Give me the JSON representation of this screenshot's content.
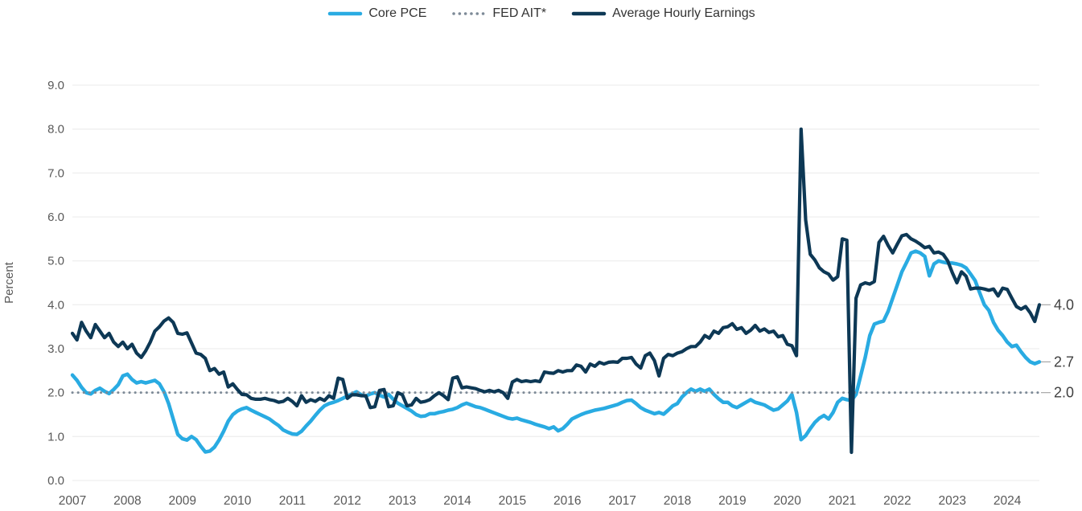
{
  "legend": [
    {
      "label": "Core PCE",
      "color": "#29ABE2",
      "style": "solid"
    },
    {
      "label": "FED AIT*",
      "color": "#7D8A97",
      "style": "dotted"
    },
    {
      "label": "Average Hourly Earnings",
      "color": "#0D3855",
      "style": "solid"
    }
  ],
  "y_axis": {
    "title": "Percent",
    "ticks": [
      "9.0",
      "8.0",
      "7.0",
      "6.0",
      "5.0",
      "4.0",
      "3.0",
      "2.0",
      "1.0",
      "0.0"
    ]
  },
  "x_axis": {
    "ticks": [
      "2007",
      "2008",
      "2009",
      "2010",
      "2011",
      "2012",
      "2013",
      "2014",
      "2015",
      "2016",
      "2017",
      "2018",
      "2019",
      "2020",
      "2021",
      "2022",
      "2023",
      "2024"
    ]
  },
  "end_labels": [
    {
      "text": "4.0",
      "value": 4.0,
      "series": "Average Hourly Earnings"
    },
    {
      "text": "2.7",
      "value": 2.7,
      "series": "Core PCE"
    },
    {
      "text": "2.0",
      "value": 2.0,
      "series": "FED AIT*"
    }
  ],
  "colors": {
    "core_pce": "#29ABE2",
    "ahe": "#0D3855",
    "fed_ait": "#7D8A97",
    "grid": "#EFEFEF",
    "axis_text": "#595959",
    "end_label": "#404040",
    "legend_text": "#333333",
    "connector": "#A6A6A6",
    "background": "#FFFFFF"
  },
  "chart_data": {
    "type": "line",
    "title": "",
    "xlabel": "",
    "ylabel": "Percent",
    "ylim": [
      0,
      9
    ],
    "grid": "horizontal",
    "legend_position": "top",
    "frequency": "monthly",
    "x_start": "2007-01",
    "x_end": "2024-08",
    "points_per_year": 12,
    "x_tick_years": [
      "2007",
      "2008",
      "2009",
      "2010",
      "2011",
      "2012",
      "2013",
      "2014",
      "2015",
      "2016",
      "2017",
      "2018",
      "2019",
      "2020",
      "2021",
      "2022",
      "2023",
      "2024"
    ],
    "series": [
      {
        "name": "Core PCE",
        "color": "#29ABE2",
        "style": "solid",
        "end_value": 2.7,
        "values": [
          2.4,
          2.28,
          2.12,
          2.0,
          1.97,
          2.05,
          2.1,
          2.03,
          1.98,
          2.07,
          2.18,
          2.38,
          2.42,
          2.3,
          2.22,
          2.25,
          2.22,
          2.25,
          2.28,
          2.2,
          2.02,
          1.75,
          1.4,
          1.05,
          0.95,
          0.92,
          1.0,
          0.93,
          0.78,
          0.65,
          0.67,
          0.76,
          0.92,
          1.12,
          1.35,
          1.5,
          1.58,
          1.63,
          1.66,
          1.6,
          1.55,
          1.5,
          1.45,
          1.4,
          1.32,
          1.25,
          1.15,
          1.1,
          1.06,
          1.05,
          1.12,
          1.24,
          1.35,
          1.48,
          1.6,
          1.7,
          1.75,
          1.78,
          1.82,
          1.87,
          1.92,
          1.97,
          2.02,
          1.95,
          1.92,
          1.97,
          2.0,
          1.94,
          1.9,
          1.96,
          1.85,
          1.76,
          1.7,
          1.64,
          1.58,
          1.5,
          1.46,
          1.47,
          1.52,
          1.52,
          1.55,
          1.57,
          1.6,
          1.62,
          1.66,
          1.72,
          1.76,
          1.72,
          1.68,
          1.66,
          1.62,
          1.58,
          1.54,
          1.5,
          1.46,
          1.42,
          1.4,
          1.42,
          1.38,
          1.35,
          1.32,
          1.28,
          1.25,
          1.22,
          1.18,
          1.22,
          1.13,
          1.18,
          1.28,
          1.4,
          1.45,
          1.5,
          1.54,
          1.57,
          1.6,
          1.62,
          1.64,
          1.67,
          1.7,
          1.73,
          1.78,
          1.82,
          1.83,
          1.75,
          1.66,
          1.6,
          1.56,
          1.52,
          1.55,
          1.51,
          1.6,
          1.7,
          1.75,
          1.9,
          2.0,
          2.08,
          2.03,
          2.08,
          2.03,
          2.08,
          1.96,
          1.86,
          1.78,
          1.78,
          1.7,
          1.66,
          1.72,
          1.78,
          1.84,
          1.78,
          1.75,
          1.72,
          1.66,
          1.6,
          1.63,
          1.72,
          1.81,
          1.96,
          1.55,
          0.93,
          1.02,
          1.18,
          1.32,
          1.42,
          1.48,
          1.4,
          1.55,
          1.78,
          1.87,
          1.84,
          1.82,
          1.96,
          2.38,
          2.8,
          3.3,
          3.56,
          3.6,
          3.63,
          3.85,
          4.15,
          4.45,
          4.75,
          4.96,
          5.18,
          5.22,
          5.18,
          5.1,
          4.66,
          4.93,
          5.0,
          4.97,
          4.95,
          4.95,
          4.93,
          4.9,
          4.84,
          4.7,
          4.55,
          4.27,
          4.0,
          3.87,
          3.6,
          3.42,
          3.3,
          3.15,
          3.05,
          3.08,
          2.93,
          2.8,
          2.7,
          2.66,
          2.7
        ]
      },
      {
        "name": "FED AIT*",
        "color": "#7D8A97",
        "style": "dotted",
        "constant": 2.0,
        "end_value": 2.0
      },
      {
        "name": "Average Hourly Earnings",
        "color": "#0D3855",
        "style": "solid",
        "end_value": 4.0,
        "values": [
          3.35,
          3.2,
          3.6,
          3.4,
          3.25,
          3.55,
          3.4,
          3.25,
          3.35,
          3.15,
          3.05,
          3.15,
          3.0,
          3.1,
          2.9,
          2.8,
          2.95,
          3.15,
          3.4,
          3.5,
          3.63,
          3.7,
          3.6,
          3.35,
          3.33,
          3.36,
          3.13,
          2.9,
          2.87,
          2.78,
          2.5,
          2.55,
          2.42,
          2.47,
          2.13,
          2.2,
          2.07,
          1.96,
          1.95,
          1.87,
          1.85,
          1.85,
          1.87,
          1.84,
          1.82,
          1.78,
          1.8,
          1.87,
          1.8,
          1.7,
          1.93,
          1.78,
          1.84,
          1.8,
          1.87,
          1.82,
          1.93,
          1.87,
          2.33,
          2.3,
          1.87,
          1.95,
          1.95,
          1.93,
          1.93,
          1.66,
          1.68,
          2.05,
          2.07,
          1.68,
          1.7,
          2.0,
          1.95,
          1.7,
          1.72,
          1.87,
          1.78,
          1.8,
          1.84,
          1.93,
          2.0,
          1.93,
          1.84,
          2.33,
          2.36,
          2.11,
          2.13,
          2.11,
          2.09,
          2.05,
          2.02,
          2.05,
          2.02,
          2.05,
          2.0,
          1.87,
          2.24,
          2.3,
          2.25,
          2.27,
          2.25,
          2.27,
          2.25,
          2.47,
          2.45,
          2.44,
          2.5,
          2.47,
          2.5,
          2.5,
          2.63,
          2.6,
          2.47,
          2.65,
          2.6,
          2.69,
          2.65,
          2.69,
          2.7,
          2.69,
          2.78,
          2.78,
          2.8,
          2.65,
          2.56,
          2.84,
          2.9,
          2.73,
          2.38,
          2.78,
          2.87,
          2.84,
          2.9,
          2.93,
          3.0,
          3.05,
          3.05,
          3.15,
          3.3,
          3.24,
          3.4,
          3.35,
          3.48,
          3.5,
          3.57,
          3.44,
          3.48,
          3.35,
          3.42,
          3.53,
          3.4,
          3.45,
          3.37,
          3.4,
          3.27,
          3.3,
          3.1,
          3.07,
          2.84,
          8.0,
          5.93,
          5.15,
          5.02,
          4.84,
          4.75,
          4.7,
          4.56,
          4.64,
          5.5,
          5.47,
          0.64,
          4.15,
          4.45,
          4.5,
          4.47,
          4.53,
          5.42,
          5.56,
          5.35,
          5.18,
          5.38,
          5.57,
          5.6,
          5.5,
          5.45,
          5.38,
          5.3,
          5.33,
          5.18,
          5.2,
          5.15,
          5.0,
          4.73,
          4.5,
          4.75,
          4.65,
          4.36,
          4.38,
          4.38,
          4.36,
          4.33,
          4.36,
          4.2,
          4.38,
          4.35,
          4.15,
          3.96,
          3.9,
          3.96,
          3.82,
          3.62,
          4.0
        ]
      }
    ]
  }
}
